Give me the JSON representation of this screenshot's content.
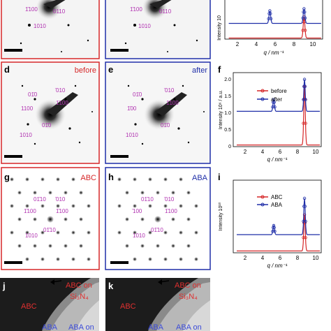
{
  "colors": {
    "red": "#d62728",
    "blue": "#1f2ea8",
    "magenta": "#b030b0",
    "dark_bg": "#222222"
  },
  "rows": [
    {
      "left": {
        "letter": "",
        "tag": ""
      },
      "mid": {
        "letter": "",
        "tag": ""
      },
      "labels_left": [
        "1̄100",
        "0110",
        "1010"
      ],
      "labels_mid": [
        "1̄100",
        "0110",
        "1010"
      ],
      "plot": {
        "letter": "",
        "ylabel": "Intensity 10",
        "xlabel": "q / nm⁻¹",
        "xticks": [
          "2",
          "4",
          "6",
          "8",
          "10"
        ]
      }
    },
    {
      "left": {
        "letter": "d",
        "tag": "before"
      },
      "mid": {
        "letter": "e",
        "tag": "after"
      },
      "labels_left": [
        "01̄0",
        "̄010",
        "1̄100",
        "1100",
        "01̄0",
        "1010"
      ],
      "labels_mid": [
        "01̄0",
        "̄010",
        "1̄100",
        "1̄00",
        "01̄0",
        "1010"
      ],
      "plot": {
        "letter": "f",
        "ylabel": "Intensity 10⁶ / a.u.",
        "xlabel": "q / nm⁻¹",
        "xticks": [
          "2",
          "4",
          "6",
          "8",
          "10"
        ],
        "yticks": [
          "0",
          "0.5",
          "1.0",
          "1.5",
          "2.0"
        ],
        "legend": [
          "before",
          "after"
        ]
      }
    },
    {
      "left": {
        "letter": "g",
        "tag": "ABC"
      },
      "mid": {
        "letter": "h",
        "tag": "ABA"
      },
      "labels_left": [
        "01̄10",
        "̄010",
        "1̄100",
        "1̄100",
        "01̄10",
        "1010"
      ],
      "labels_mid": [
        "01̄10",
        "̄010",
        "1̄100",
        "̄100",
        "01̄10",
        "1010"
      ],
      "plot": {
        "letter": "i",
        "ylabel": "Intensity 10¹⁰",
        "xlabel": "q / nm⁻¹",
        "xticks": [
          "2",
          "4",
          "6",
          "8",
          "10"
        ],
        "legend": [
          "ABC",
          "ABA"
        ]
      }
    }
  ],
  "bottom": {
    "j": {
      "letter": "j",
      "t1": "ABC on",
      "t2": "Si₃N₄",
      "t3": "ABC",
      "t4": "ABA",
      "t5": "ABA on"
    },
    "k": {
      "letter": "k",
      "t1": "ABC on",
      "t2": "Si₃N₄",
      "t3": "ABC",
      "t4": "ABA",
      "t5": "ABA on"
    }
  },
  "chart_data": [
    {
      "type": "line",
      "xlabel": "q / nm⁻¹",
      "ylabel": "Intensity 10",
      "xlim": [
        0,
        10
      ],
      "series": [
        {
          "peaks": [
            [
              8.1,
              1.0
            ]
          ],
          "baseline": 0.05,
          "color": "red"
        },
        {
          "peaks": [
            [
              4.6,
              0.6
            ],
            [
              8.1,
              0.7
            ]
          ],
          "baseline": 0.75,
          "color": "blue"
        }
      ]
    },
    {
      "type": "line",
      "xlabel": "q / nm⁻¹",
      "ylabel": "Intensity 10⁶ / a.u.",
      "xlim": [
        0,
        10
      ],
      "ylim": [
        0,
        2.2
      ],
      "series": [
        {
          "name": "before",
          "peaks": [
            [
              8.1,
              1.75
            ]
          ],
          "baseline": 0.05,
          "color": "red"
        },
        {
          "name": "after",
          "peaks": [
            [
              4.6,
              0.35
            ],
            [
              8.1,
              0.95
            ]
          ],
          "baseline": 1.05,
          "color": "blue"
        }
      ]
    },
    {
      "type": "line",
      "xlabel": "q / nm⁻¹",
      "ylabel": "Intensity 10¹⁰",
      "xlim": [
        0,
        10
      ],
      "series": [
        {
          "name": "ABC",
          "peaks": [
            [
              8.1,
              1.0
            ]
          ],
          "baseline": 0.05,
          "color": "red"
        },
        {
          "name": "ABA",
          "peaks": [
            [
              4.6,
              0.25
            ],
            [
              8.1,
              1.0
            ]
          ],
          "baseline": 0.5,
          "color": "blue"
        }
      ]
    }
  ]
}
